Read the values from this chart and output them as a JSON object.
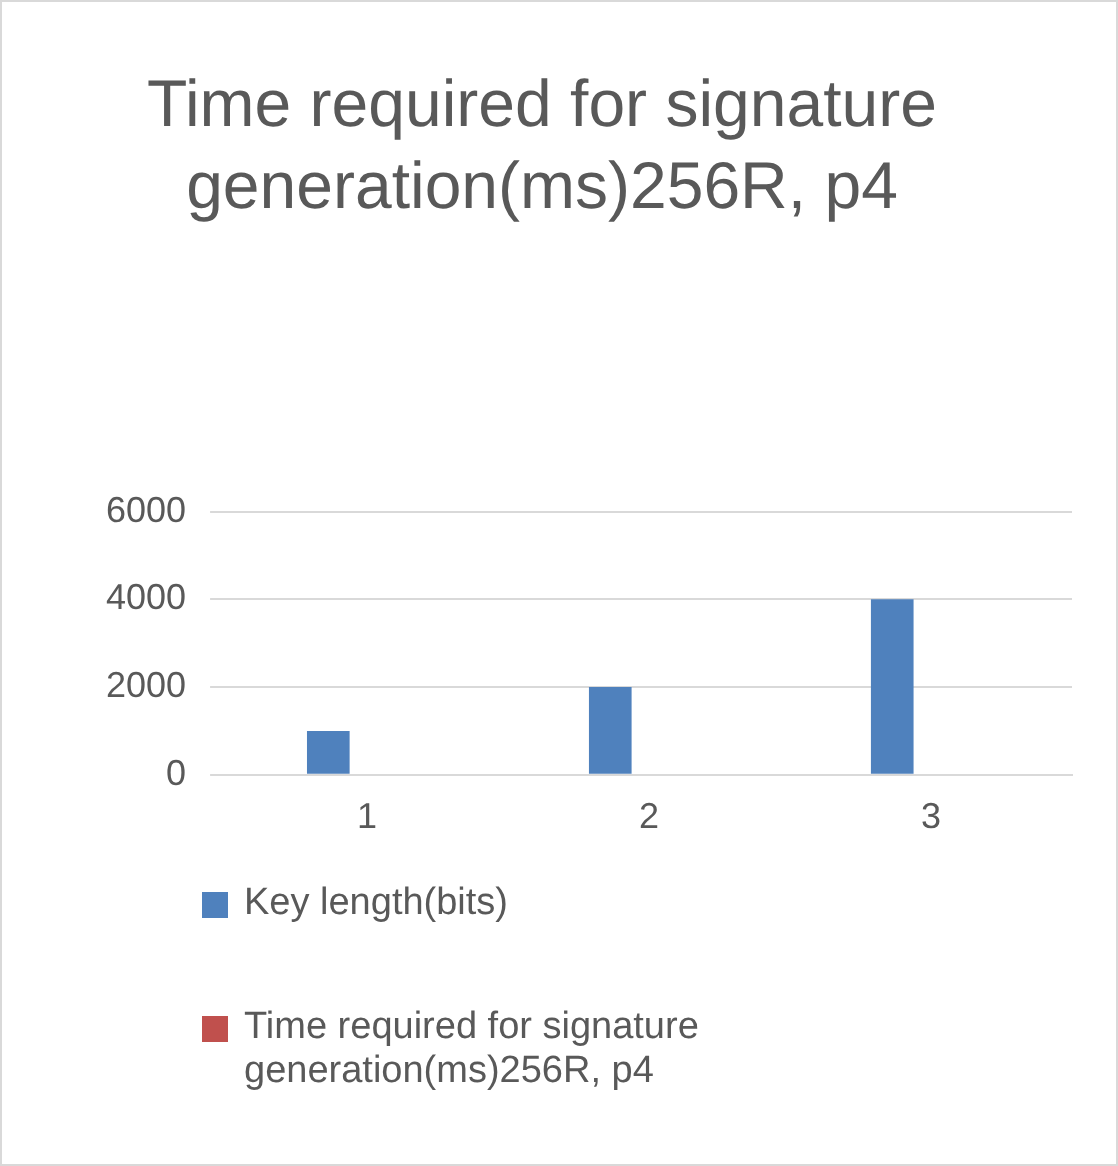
{
  "chart_data": {
    "type": "bar",
    "title": "Time required for signature generation(ms)256R, p4",
    "categories": [
      "1",
      "2",
      "3"
    ],
    "series": [
      {
        "name": "Key length(bits)",
        "color": "#4f81bd",
        "values": [
          1000,
          2000,
          4000
        ]
      },
      {
        "name": "Time required for signature generation(ms)256R, p4",
        "color": "#c0504d",
        "values": [
          0,
          0,
          0
        ]
      }
    ],
    "ylim": [
      0,
      6000
    ],
    "yticks": [
      0,
      2000,
      4000,
      6000
    ],
    "grid": "y",
    "legend": "bottom"
  }
}
